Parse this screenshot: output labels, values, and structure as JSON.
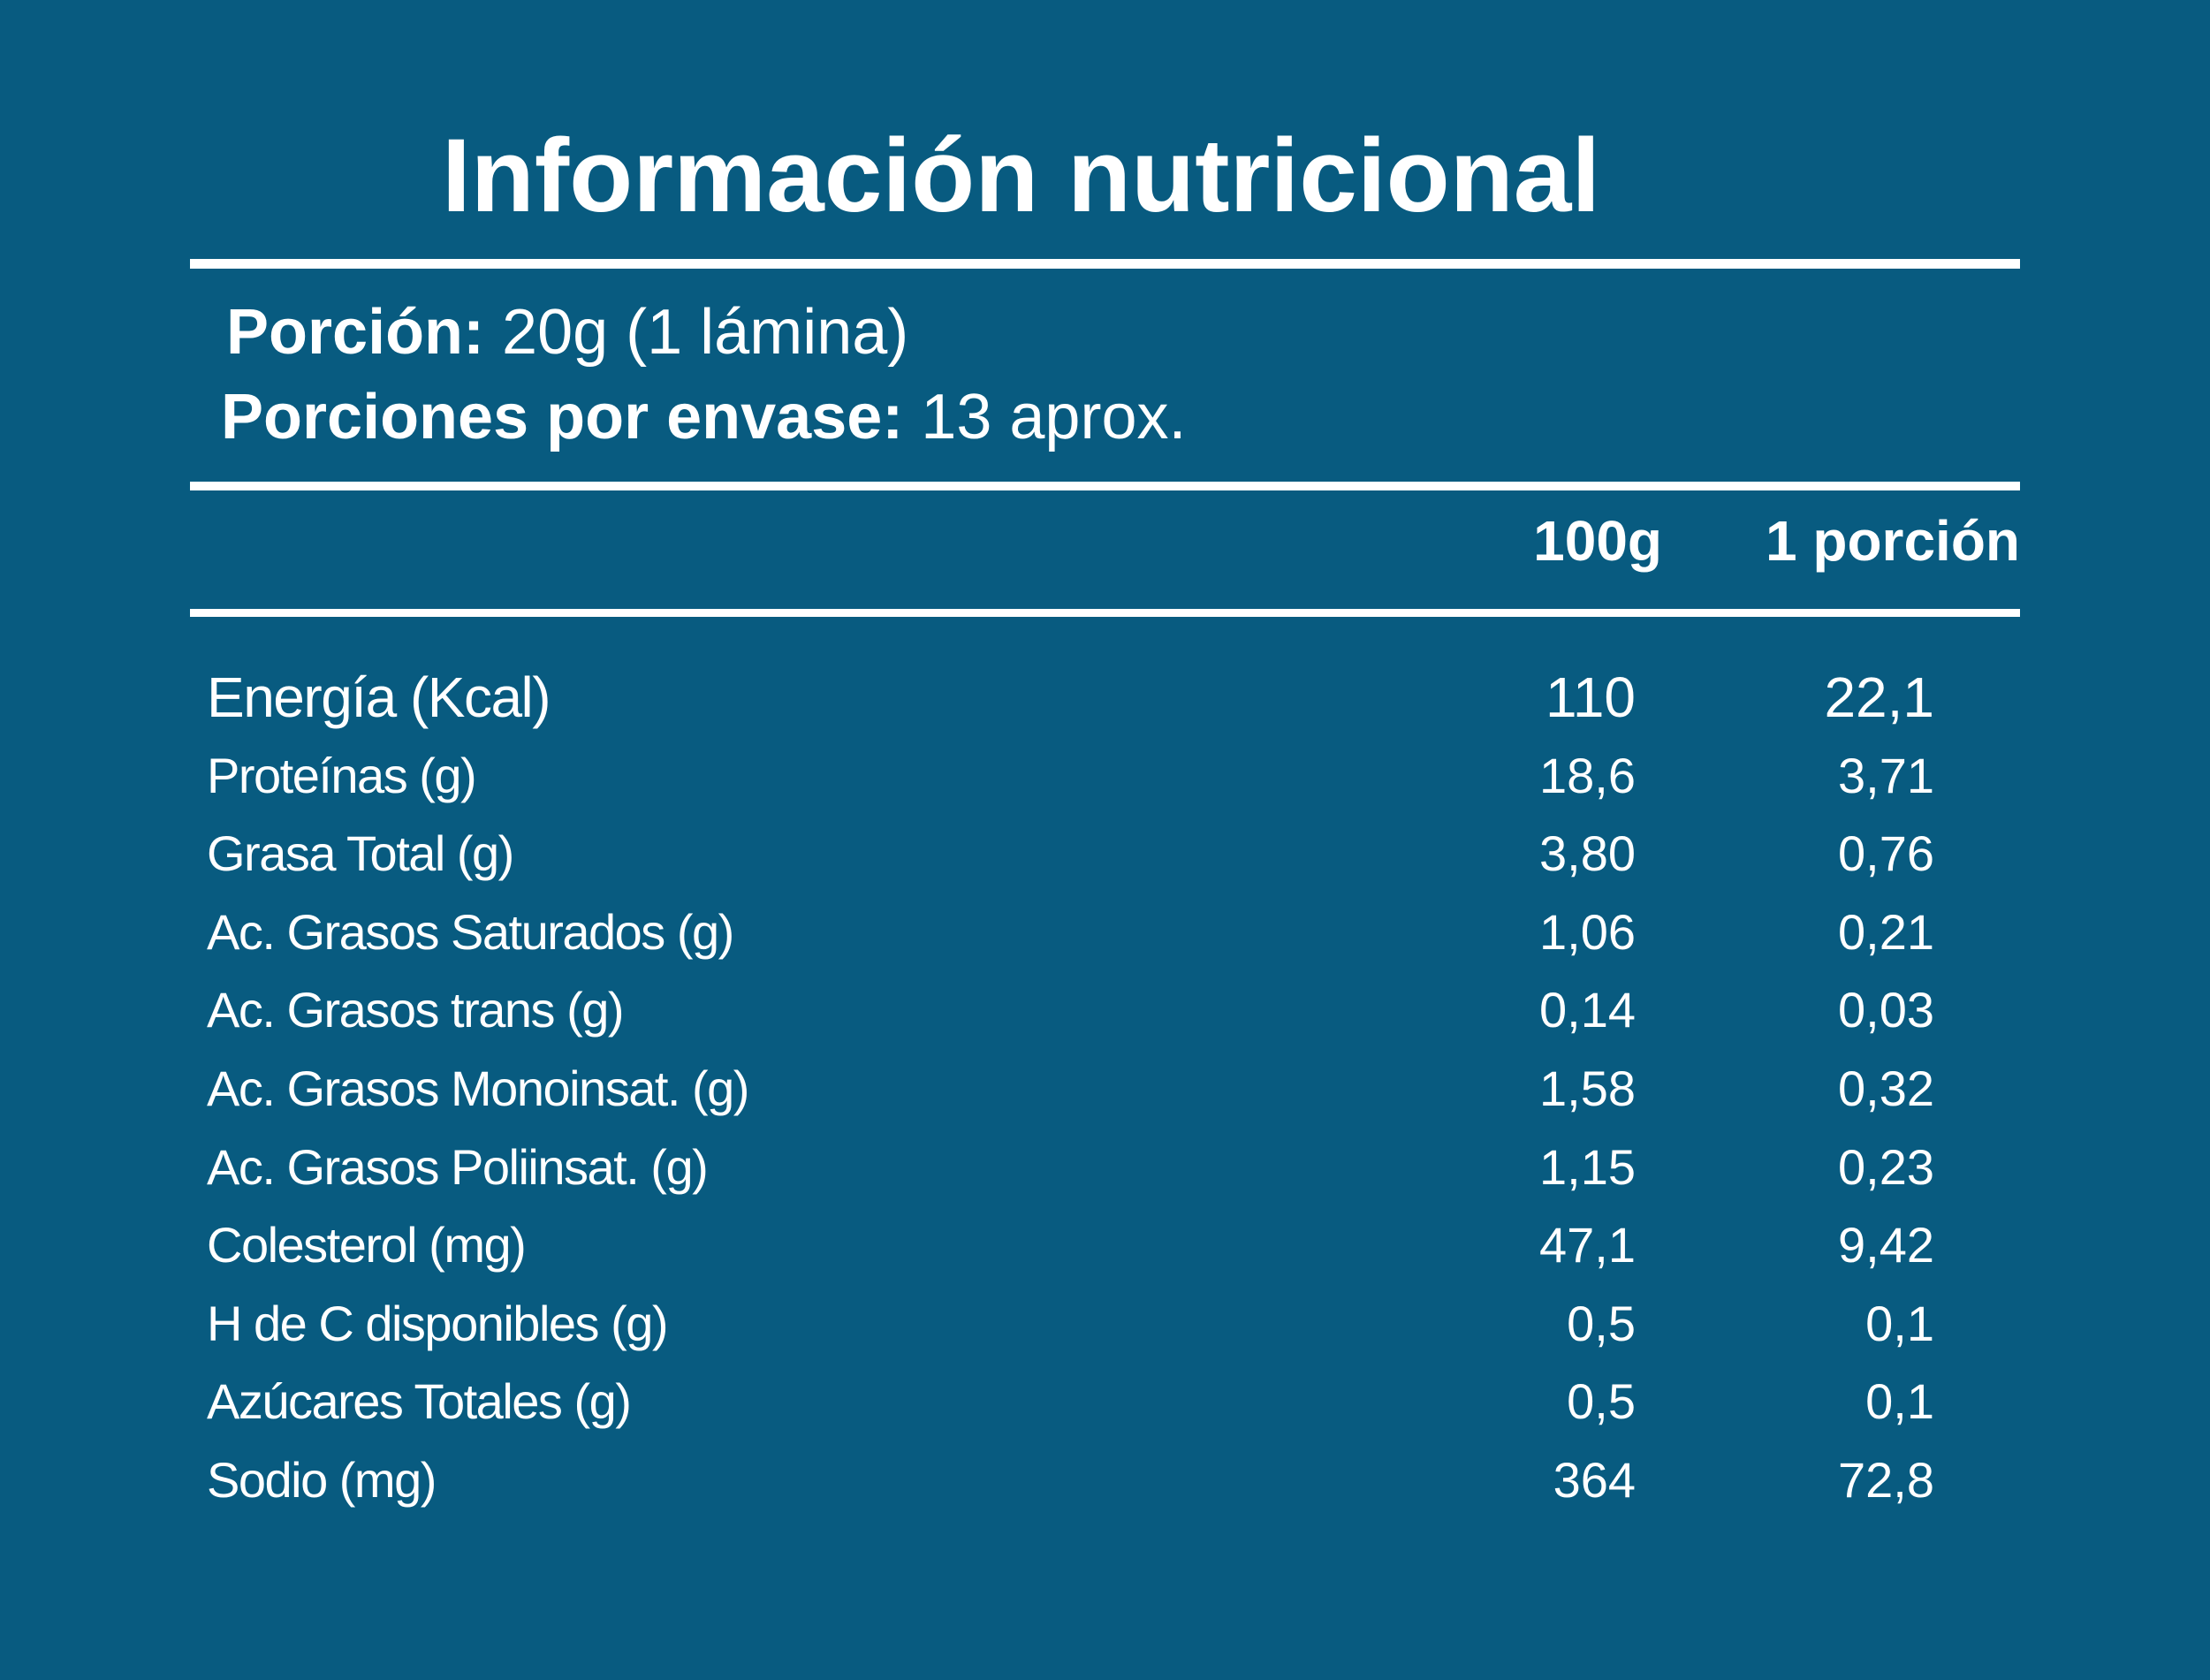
{
  "title": "Información nutricional",
  "serving": {
    "portion_label": "Porción:",
    "portion_value": " 20g (1 lámina)",
    "per_pack_label": "Porciones por envase:",
    "per_pack_value": " 13 aprox."
  },
  "columns": {
    "per_100g": "100g",
    "per_portion": "1 porción"
  },
  "rows": [
    {
      "name": "Energía (Kcal)",
      "per_100g": "110",
      "per_portion": "22,1"
    },
    {
      "name": "Proteínas (g)",
      "per_100g": "18,6",
      "per_portion": "3,71"
    },
    {
      "name": "Grasa Total (g)",
      "per_100g": "3,80",
      "per_portion": "0,76"
    },
    {
      "name": "Ac. Grasos Saturados (g)",
      "per_100g": "1,06",
      "per_portion": "0,21"
    },
    {
      "name": "Ac. Grasos trans (g)",
      "per_100g": "0,14",
      "per_portion": "0,03"
    },
    {
      "name": "Ac. Grasos Monoinsat. (g)",
      "per_100g": "1,58",
      "per_portion": "0,32"
    },
    {
      "name": "Ac. Grasos Poliinsat. (g)",
      "per_100g": "1,15",
      "per_portion": "0,23"
    },
    {
      "name": "Colesterol (mg)",
      "per_100g": "47,1",
      "per_portion": "9,42"
    },
    {
      "name": "H de C disponibles (g)",
      "per_100g": "0,5",
      "per_portion": "0,1"
    },
    {
      "name": "Azúcares Totales (g)",
      "per_100g": "0,5",
      "per_portion": "0,1"
    },
    {
      "name": "Sodio (mg)",
      "per_100g": "364",
      "per_portion": "72,8"
    }
  ],
  "colors": {
    "background": "#085b80",
    "text": "#ffffff"
  }
}
